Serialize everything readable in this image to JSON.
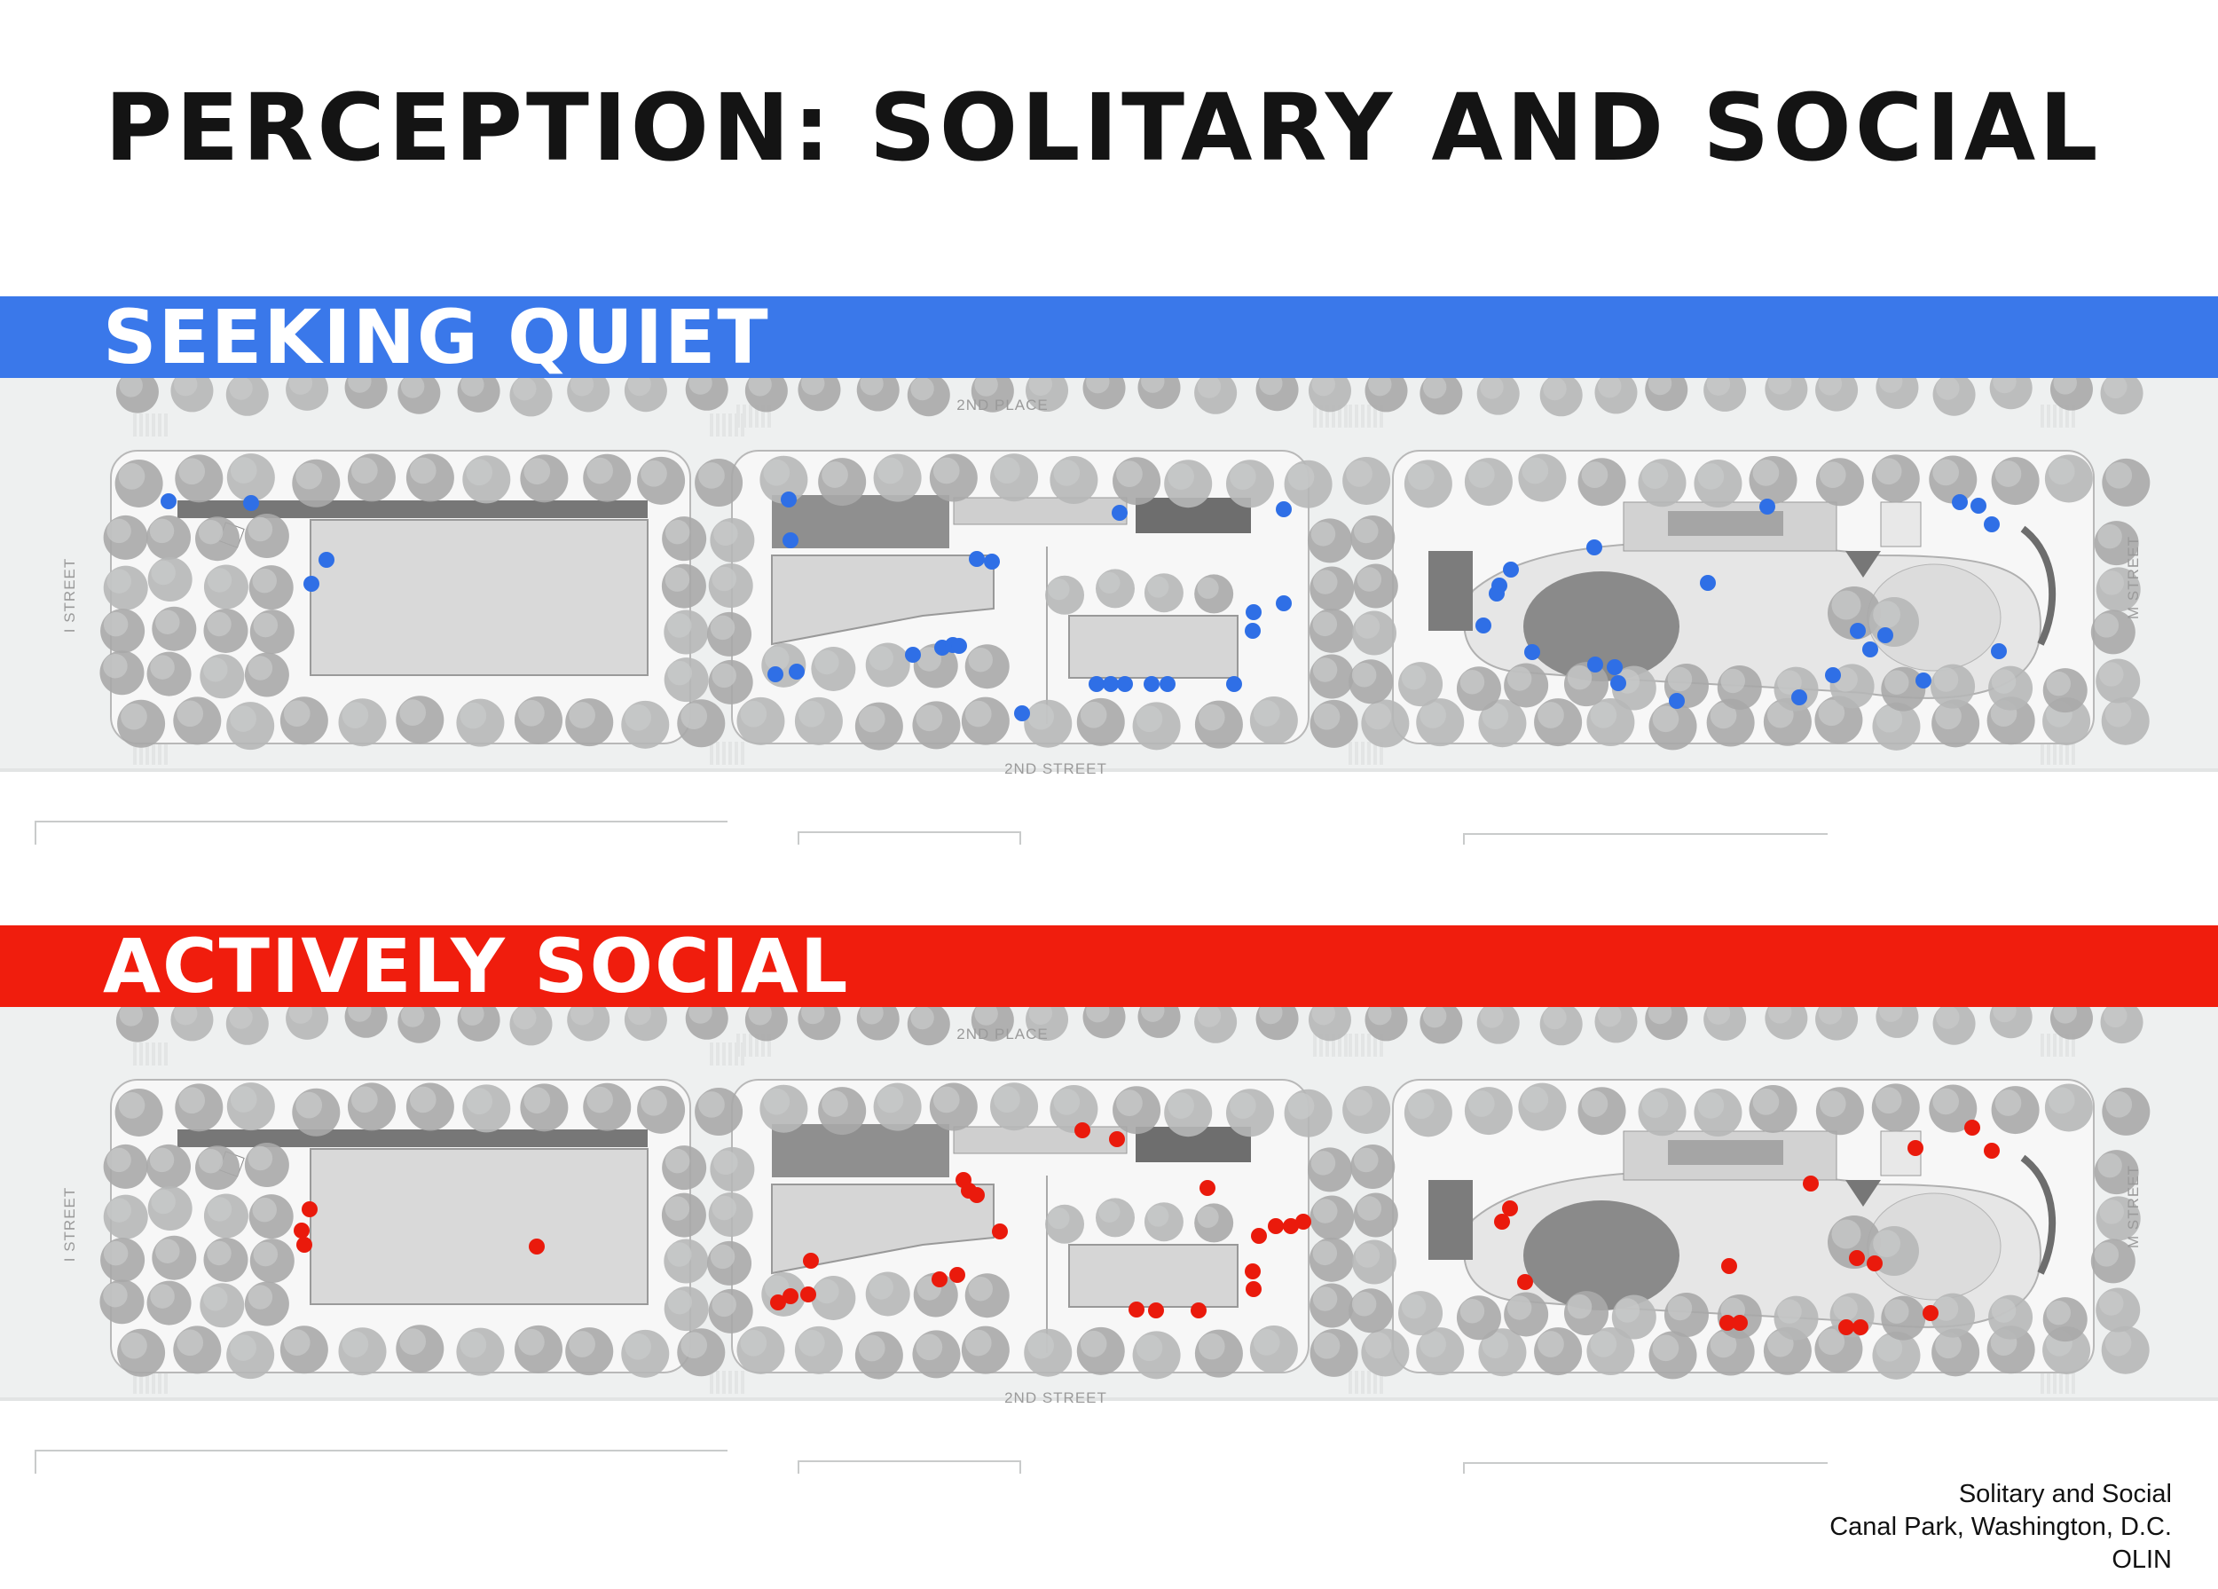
{
  "title": "PERCEPTION: SOLITARY AND SOCIAL",
  "colors": {
    "quiet": "#3a78ea",
    "social": "#f01d0d",
    "quiet_dot": "#2f6fe6",
    "social_dot": "#ea1a0c"
  },
  "panels": [
    {
      "id": "quiet",
      "label": "SEEKING QUIET",
      "dots": [
        [
          190,
          565
        ],
        [
          283,
          567
        ],
        [
          368,
          631
        ],
        [
          351,
          658
        ],
        [
          889,
          563
        ],
        [
          891,
          609
        ],
        [
          1101,
          630
        ],
        [
          1118,
          633
        ],
        [
          1262,
          578
        ],
        [
          1447,
          574
        ],
        [
          1447,
          680
        ],
        [
          1413,
          690
        ],
        [
          1412,
          711
        ],
        [
          1029,
          738
        ],
        [
          1062,
          730
        ],
        [
          1074,
          727
        ],
        [
          1081,
          728
        ],
        [
          874,
          760
        ],
        [
          898,
          757
        ],
        [
          1152,
          804
        ],
        [
          1236,
          771
        ],
        [
          1252,
          771
        ],
        [
          1268,
          771
        ],
        [
          1298,
          771
        ],
        [
          1316,
          771
        ],
        [
          1391,
          771
        ],
        [
          1992,
          571
        ],
        [
          1797,
          617
        ],
        [
          1925,
          657
        ],
        [
          1703,
          642
        ],
        [
          1690,
          660
        ],
        [
          1687,
          669
        ],
        [
          1672,
          705
        ],
        [
          1727,
          735
        ],
        [
          1798,
          749
        ],
        [
          1820,
          752
        ],
        [
          1824,
          770
        ],
        [
          1890,
          790
        ],
        [
          2028,
          786
        ],
        [
          2066,
          761
        ],
        [
          2094,
          711
        ],
        [
          2108,
          732
        ],
        [
          2125,
          716
        ],
        [
          2168,
          767
        ],
        [
          2209,
          566
        ],
        [
          2230,
          570
        ],
        [
          2245,
          591
        ],
        [
          2253,
          734
        ]
      ]
    },
    {
      "id": "social",
      "label": "ACTIVELY SOCIAL",
      "dots": [
        [
          349,
          1363
        ],
        [
          340,
          1387
        ],
        [
          343,
          1403
        ],
        [
          605,
          1405
        ],
        [
          1220,
          1274
        ],
        [
          1259,
          1284
        ],
        [
          1086,
          1330
        ],
        [
          1092,
          1342
        ],
        [
          1101,
          1347
        ],
        [
          1127,
          1388
        ],
        [
          1361,
          1339
        ],
        [
          1419,
          1393
        ],
        [
          1438,
          1382
        ],
        [
          1455,
          1382
        ],
        [
          1469,
          1377
        ],
        [
          914,
          1421
        ],
        [
          877,
          1468
        ],
        [
          891,
          1461
        ],
        [
          911,
          1459
        ],
        [
          1059,
          1442
        ],
        [
          1079,
          1437
        ],
        [
          1412,
          1433
        ],
        [
          1413,
          1453
        ],
        [
          1281,
          1476
        ],
        [
          1303,
          1477
        ],
        [
          1351,
          1477
        ],
        [
          1702,
          1362
        ],
        [
          1693,
          1377
        ],
        [
          1719,
          1445
        ],
        [
          1949,
          1427
        ],
        [
          2041,
          1334
        ],
        [
          2093,
          1418
        ],
        [
          2113,
          1424
        ],
        [
          2159,
          1294
        ],
        [
          2223,
          1271
        ],
        [
          2245,
          1297
        ],
        [
          1947,
          1491
        ],
        [
          1961,
          1491
        ],
        [
          2081,
          1496
        ],
        [
          2097,
          1496
        ],
        [
          2176,
          1480
        ]
      ]
    }
  ],
  "streets": {
    "north": "2ND PLACE",
    "south": "2ND STREET",
    "west": "I STREET",
    "east": "M STREET"
  },
  "credit": {
    "line1": "Solitary and Social",
    "line2": "Canal Park, Washington, D.C.",
    "line3": "OLIN"
  }
}
